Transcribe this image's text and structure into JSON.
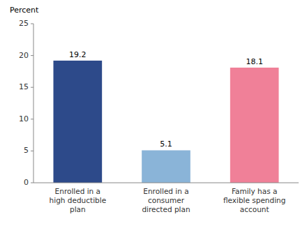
{
  "chart_data": {
    "type": "bar",
    "ylabel": "Percent",
    "categories": [
      "Enrolled in a\nhigh deductible\nplan",
      "Enrolled in a\nconsumer\ndirected plan",
      "Family has a\nflexible spending\naccount"
    ],
    "values": [
      19.2,
      5.1,
      18.1
    ],
    "colors": [
      "#2d4a8a",
      "#8ab4d8",
      "#f08098"
    ],
    "ylim": [
      0,
      25
    ],
    "yticks": [
      0,
      5,
      10,
      15,
      20,
      25
    ],
    "grid": false,
    "data_labels": true
  }
}
